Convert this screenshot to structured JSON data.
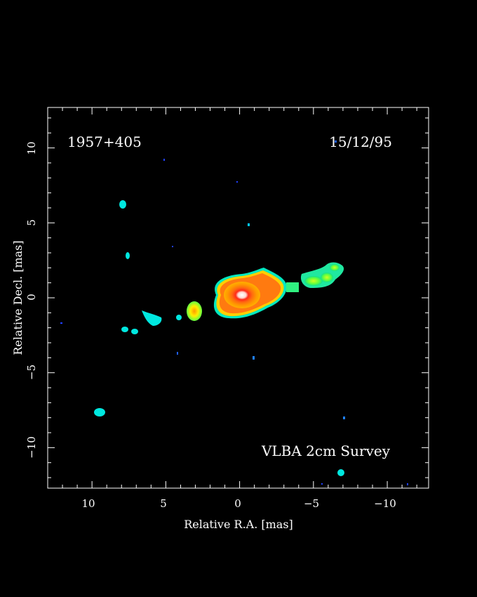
{
  "figure": {
    "source_name": "1957+405",
    "epoch": "15/12/95",
    "survey": "VLBA 2cm Survey",
    "xlabel": "Relative R.A. [mas]",
    "ylabel": "Relative Decl. [mas]",
    "x_range_mas": [
      13,
      -12.8
    ],
    "y_range_mas": [
      -12.7,
      12.7
    ],
    "x_ticks": [
      "10",
      "5",
      "0",
      "−5",
      "−10"
    ],
    "y_ticks": [
      "10",
      "5",
      "0",
      "−5",
      "−10"
    ],
    "colormap": [
      "#0000ff",
      "#00ffff",
      "#00ff00",
      "#ffff00",
      "#ff8800",
      "#ff0000",
      "#ffffff"
    ],
    "background_color": "#000000",
    "frame_color": "#ffffff"
  }
}
